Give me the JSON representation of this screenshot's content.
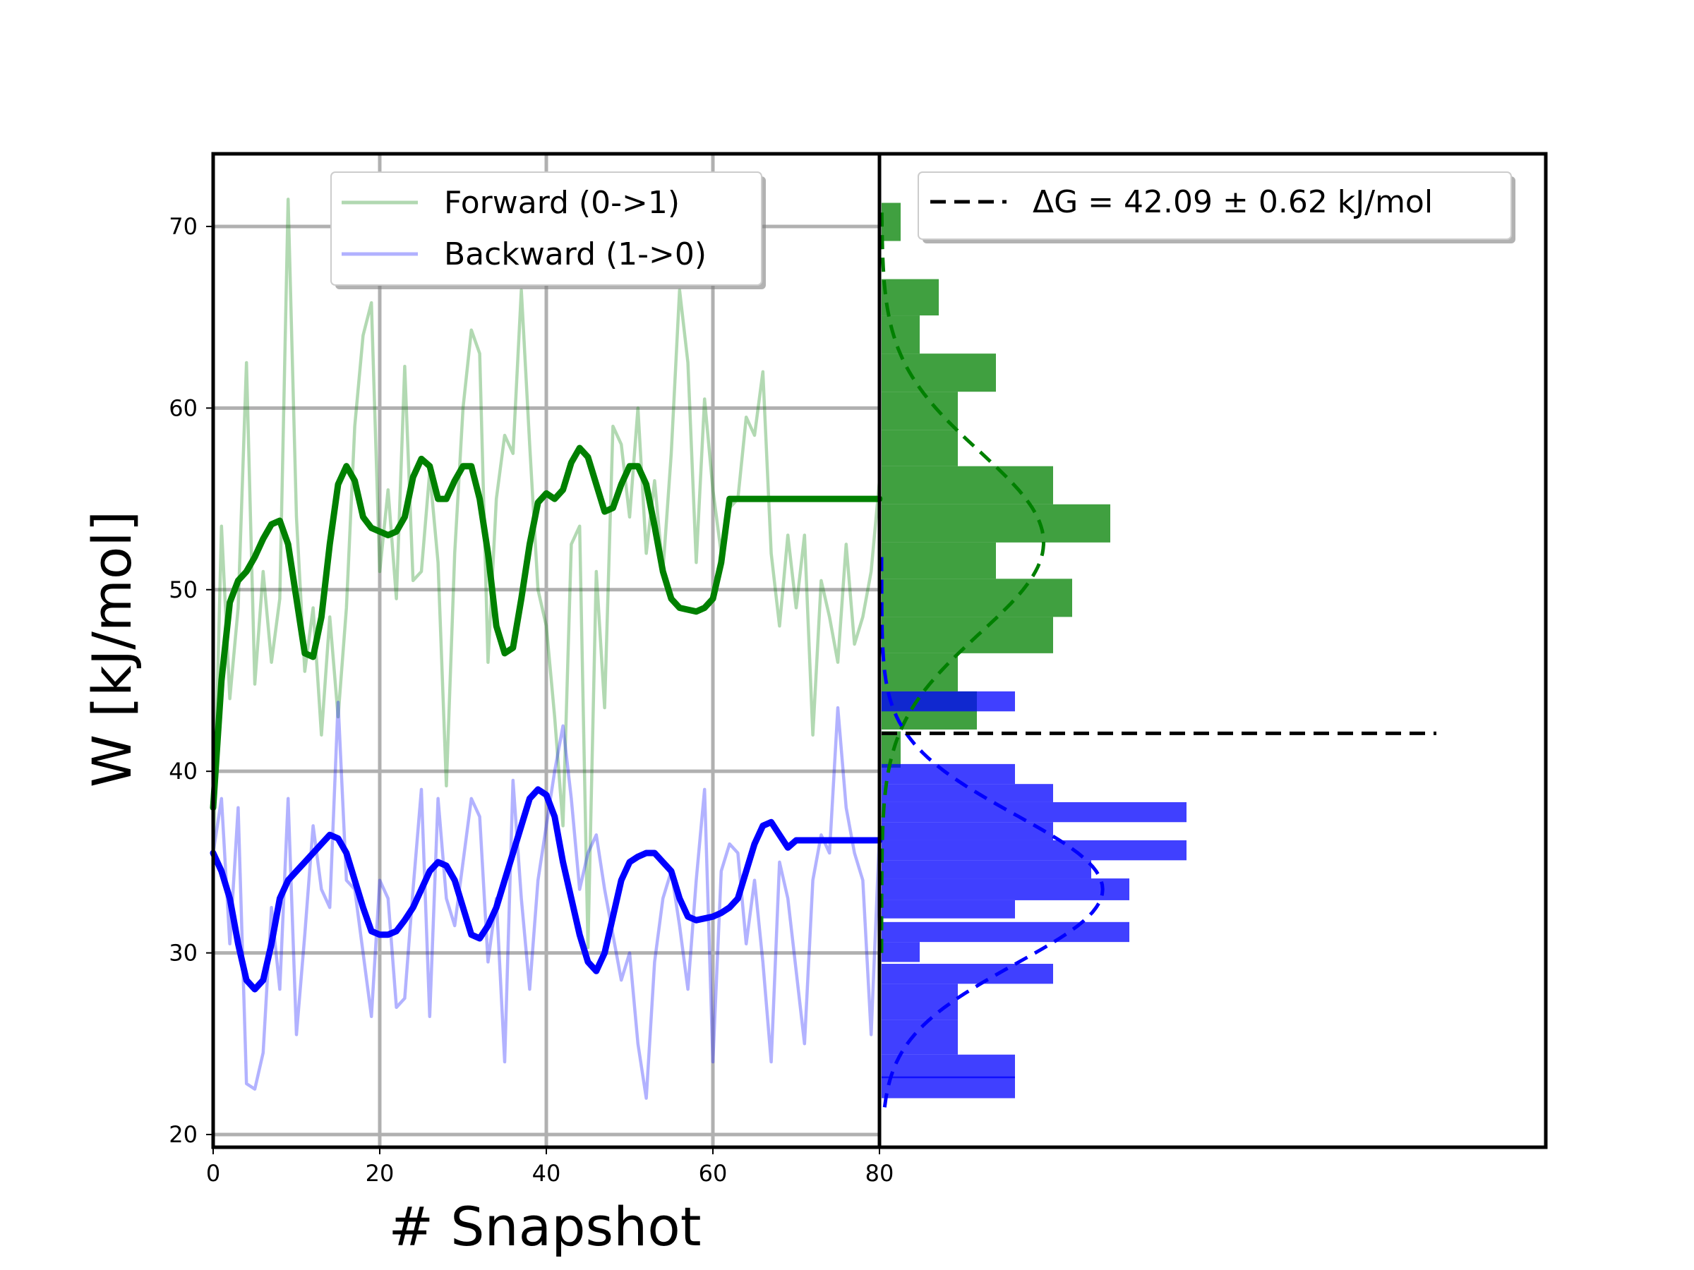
{
  "chart_data": [
    {
      "type": "line",
      "panel": "left",
      "xlabel": "# Snapshot",
      "ylabel": "W [kJ/mol]",
      "xlim": [
        0,
        80
      ],
      "ylim": [
        19.3,
        74.0
      ],
      "xticks": [
        "0",
        "20",
        "40",
        "60",
        "80"
      ],
      "yticks": [
        "20",
        "30",
        "40",
        "50",
        "60",
        "70"
      ],
      "grid": true,
      "legend": {
        "placement": "top-center",
        "entries": [
          "Forward (0->1)",
          "Backward (1->0)"
        ]
      },
      "series": [
        {
          "name": "Forward (0->1)",
          "color": "#008000",
          "style": "raw, translucent",
          "x": [
            0,
            1,
            2,
            3,
            4,
            5,
            6,
            7,
            8,
            9,
            10,
            11,
            12,
            13,
            14,
            15,
            16,
            17,
            18,
            19,
            20,
            21,
            22,
            23,
            24,
            25,
            26,
            27,
            28,
            29,
            30,
            31,
            32,
            33,
            34,
            35,
            36,
            37,
            38,
            39,
            40,
            41,
            42,
            43,
            44,
            45,
            46,
            47,
            48,
            49,
            50,
            51,
            52,
            53,
            54,
            55,
            56,
            57,
            58,
            59,
            60,
            61,
            62,
            63,
            64,
            65,
            66,
            67,
            68,
            69,
            70,
            71,
            72,
            73,
            74,
            75,
            76,
            77,
            78,
            79,
            80
          ],
          "values": [
            35.0,
            53.5,
            44.0,
            49.0,
            62.5,
            44.8,
            51.0,
            46.0,
            49.5,
            71.5,
            54.0,
            45.5,
            49.0,
            42.0,
            48.5,
            43.0,
            49.0,
            59.0,
            64.0,
            65.8,
            51.0,
            55.5,
            49.5,
            62.3,
            50.5,
            51.0,
            56.5,
            51.5,
            39.2,
            52.0,
            60.0,
            64.3,
            63.0,
            46.0,
            55.0,
            58.5,
            57.5,
            66.5,
            58.0,
            50.0,
            48.0,
            43.0,
            37.0,
            52.5,
            53.5,
            30.3,
            51.0,
            43.5,
            59.0,
            58.0,
            54.0,
            60.0,
            52.0,
            56.0,
            51.0,
            57.5,
            66.5,
            62.5,
            51.5,
            60.5,
            55.5,
            52.0,
            54.5,
            55.0,
            59.5,
            58.5,
            62.0,
            52.0,
            48.0,
            53.0,
            49.0,
            53.0,
            42.0,
            50.5,
            48.5,
            46.0,
            52.5,
            47.0,
            48.5,
            51.0,
            56.0
          ]
        },
        {
          "name": "Forward smoothed",
          "color": "#008000",
          "style": "smooth, thick",
          "x": [
            0,
            1,
            2,
            3,
            4,
            5,
            6,
            7,
            8,
            9,
            10,
            11,
            12,
            13,
            14,
            15,
            16,
            17,
            18,
            19,
            20,
            21,
            22,
            23,
            24,
            25,
            26,
            27,
            28,
            29,
            30,
            31,
            32,
            33,
            34,
            35,
            36,
            37,
            38,
            39,
            40,
            41,
            42,
            43,
            44,
            45,
            46,
            47,
            48,
            49,
            50,
            51,
            52,
            53,
            54,
            55,
            56,
            57,
            58,
            59,
            60,
            61,
            62,
            63,
            64,
            65,
            66,
            67,
            68,
            69,
            70,
            71,
            72,
            73,
            74,
            75,
            76,
            77,
            78,
            79,
            80
          ],
          "values": [
            38.0,
            45.0,
            49.3,
            50.5,
            51.0,
            51.8,
            52.8,
            53.6,
            53.8,
            52.5,
            49.5,
            46.5,
            46.3,
            48.5,
            52.5,
            55.8,
            56.8,
            56.0,
            54.0,
            53.4,
            53.2,
            53.0,
            53.2,
            54.0,
            56.2,
            57.2,
            56.8,
            55.0,
            55.0,
            56.0,
            56.8,
            56.8,
            55.0,
            52.0,
            48.0,
            46.5,
            46.8,
            49.5,
            52.5,
            54.8,
            55.3,
            55.0,
            55.5,
            57.0,
            57.8,
            57.3,
            55.8,
            54.3,
            54.5,
            55.8,
            56.8,
            56.8,
            55.8,
            53.5,
            51.0,
            49.5,
            49.0,
            48.9,
            48.8,
            49.0,
            49.5,
            51.5,
            55.0,
            55.0,
            55.0,
            55.0,
            55.0,
            55.0,
            55.0,
            55.0,
            55.0,
            55.0,
            55.0,
            55.0,
            55.0,
            55.0,
            55.0,
            55.0,
            55.0,
            55.0,
            55.0
          ]
        },
        {
          "name": "Backward (1->0)",
          "color": "#0000ff",
          "style": "raw, translucent",
          "x": [
            0,
            1,
            2,
            3,
            4,
            5,
            6,
            7,
            8,
            9,
            10,
            11,
            12,
            13,
            14,
            15,
            16,
            17,
            18,
            19,
            20,
            21,
            22,
            23,
            24,
            25,
            26,
            27,
            28,
            29,
            30,
            31,
            32,
            33,
            34,
            35,
            36,
            37,
            38,
            39,
            40,
            41,
            42,
            43,
            44,
            45,
            46,
            47,
            48,
            49,
            50,
            51,
            52,
            53,
            54,
            55,
            56,
            57,
            58,
            59,
            60,
            61,
            62,
            63,
            64,
            65,
            66,
            67,
            68,
            69,
            70,
            71,
            72,
            73,
            74,
            75,
            76,
            77,
            78,
            79,
            80
          ],
          "values": [
            35.5,
            38.5,
            30.5,
            38.0,
            22.8,
            22.5,
            24.5,
            32.5,
            28.0,
            38.5,
            25.5,
            31.0,
            37.0,
            33.5,
            32.5,
            43.8,
            34.0,
            33.5,
            30.0,
            26.5,
            34.0,
            33.0,
            27.0,
            27.5,
            33.5,
            39.0,
            26.5,
            38.5,
            33.0,
            31.5,
            35.0,
            38.5,
            37.5,
            29.5,
            33.0,
            24.0,
            39.5,
            33.0,
            28.0,
            34.0,
            37.0,
            40.0,
            42.5,
            38.5,
            33.5,
            35.5,
            36.5,
            33.5,
            31.0,
            28.5,
            30.0,
            25.0,
            22.0,
            29.5,
            33.0,
            34.5,
            31.5,
            28.0,
            34.0,
            39.0,
            24.0,
            34.5,
            36.0,
            35.5,
            30.5,
            34.0,
            29.5,
            24.0,
            35.0,
            33.0,
            29.0,
            25.0,
            34.0,
            36.5,
            35.5,
            43.5,
            38.0,
            35.5,
            34.0,
            25.5,
            36.5
          ]
        },
        {
          "name": "Backward smoothed",
          "color": "#0000ff",
          "style": "smooth, thick",
          "x": [
            0,
            1,
            2,
            3,
            4,
            5,
            6,
            7,
            8,
            9,
            10,
            11,
            12,
            13,
            14,
            15,
            16,
            17,
            18,
            19,
            20,
            21,
            22,
            23,
            24,
            25,
            26,
            27,
            28,
            29,
            30,
            31,
            32,
            33,
            34,
            35,
            36,
            37,
            38,
            39,
            40,
            41,
            42,
            43,
            44,
            45,
            46,
            47,
            48,
            49,
            50,
            51,
            52,
            53,
            54,
            55,
            56,
            57,
            58,
            59,
            60,
            61,
            62,
            63,
            64,
            65,
            66,
            67,
            68,
            69,
            70,
            71,
            72,
            73,
            74,
            75,
            76,
            77,
            78,
            79,
            80
          ],
          "values": [
            35.5,
            34.5,
            33.0,
            30.5,
            28.5,
            28.0,
            28.5,
            30.5,
            33.0,
            34.0,
            34.5,
            35.0,
            35.5,
            36.0,
            36.5,
            36.3,
            35.5,
            34.0,
            32.5,
            31.2,
            31.0,
            31.0,
            31.2,
            31.8,
            32.5,
            33.5,
            34.5,
            35.0,
            34.8,
            34.0,
            32.5,
            31.0,
            30.8,
            31.5,
            32.5,
            34.0,
            35.5,
            37.0,
            38.5,
            39.0,
            38.7,
            37.5,
            35.0,
            33.0,
            31.0,
            29.5,
            29.0,
            30.0,
            32.0,
            34.0,
            35.0,
            35.3,
            35.5,
            35.5,
            35.0,
            34.5,
            33.0,
            32.0,
            31.8,
            31.9,
            32.0,
            32.2,
            32.5,
            33.0,
            34.5,
            36.0,
            37.0,
            37.2,
            36.5,
            35.8,
            36.2,
            36.2,
            36.2,
            36.2,
            36.2,
            36.2,
            36.2,
            36.2,
            36.2,
            36.2,
            36.2
          ]
        }
      ]
    },
    {
      "type": "bar",
      "orientation": "horizontal histogram",
      "panel": "right",
      "ylim": [
        19.3,
        74.0
      ],
      "legend": {
        "placement": "top-right",
        "entries": [
          "ΔG = 42.09 ± 0.62 kJ/mol"
        ]
      },
      "delta_g": {
        "value": 42.09,
        "error": 0.62,
        "label": "ΔG = 42.09 ± 0.62 kJ/mol",
        "color": "#000000"
      },
      "series": [
        {
          "name": "Forward histogram",
          "color": "#008000",
          "bins": [
            {
              "y0": 40.2,
              "y1": 42.2,
              "count": 1
            },
            {
              "y0": 42.3,
              "y1": 44.4,
              "count": 5
            },
            {
              "y0": 44.4,
              "y1": 46.5,
              "count": 4
            },
            {
              "y0": 46.5,
              "y1": 48.5,
              "count": 9
            },
            {
              "y0": 48.5,
              "y1": 50.6,
              "count": 10
            },
            {
              "y0": 50.6,
              "y1": 52.6,
              "count": 6
            },
            {
              "y0": 52.6,
              "y1": 54.7,
              "count": 12
            },
            {
              "y0": 54.7,
              "y1": 56.8,
              "count": 9
            },
            {
              "y0": 56.8,
              "y1": 58.8,
              "count": 4
            },
            {
              "y0": 58.8,
              "y1": 60.9,
              "count": 4
            },
            {
              "y0": 60.9,
              "y1": 63.0,
              "count": 6
            },
            {
              "y0": 63.0,
              "y1": 65.1,
              "count": 2
            },
            {
              "y0": 65.1,
              "y1": 67.1,
              "count": 3
            },
            {
              "y0": 69.2,
              "y1": 71.3,
              "count": 1
            }
          ]
        },
        {
          "name": "Backward histogram",
          "color": "#0000ff",
          "bins": [
            {
              "y0": 22.0,
              "y1": 23.2,
              "count": 7
            },
            {
              "y0": 23.1,
              "y1": 24.4,
              "count": 7
            },
            {
              "y0": 24.4,
              "y1": 26.3,
              "count": 4
            },
            {
              "y0": 26.3,
              "y1": 28.3,
              "count": 4
            },
            {
              "y0": 28.3,
              "y1": 29.4,
              "count": 9
            },
            {
              "y0": 29.5,
              "y1": 30.6,
              "count": 2
            },
            {
              "y0": 30.6,
              "y1": 31.7,
              "count": 13
            },
            {
              "y0": 31.9,
              "y1": 32.9,
              "count": 7
            },
            {
              "y0": 32.9,
              "y1": 34.1,
              "count": 13
            },
            {
              "y0": 34.1,
              "y1": 35.1,
              "count": 11
            },
            {
              "y0": 35.1,
              "y1": 36.2,
              "count": 16
            },
            {
              "y0": 36.2,
              "y1": 37.2,
              "count": 9
            },
            {
              "y0": 37.2,
              "y1": 38.3,
              "count": 16
            },
            {
              "y0": 38.3,
              "y1": 39.3,
              "count": 9
            },
            {
              "y0": 39.3,
              "y1": 40.4,
              "count": 7
            },
            {
              "y0": 43.3,
              "y1": 44.4,
              "count": 7
            }
          ]
        }
      ],
      "fits": [
        {
          "name": "Forward gaussian fit",
          "color": "#008000",
          "style": "dashed",
          "mean": 52.6,
          "std": 5.0,
          "peak": 8.5,
          "ymin": 30.0,
          "ymax": 71.0
        },
        {
          "name": "Backward gaussian fit",
          "color": "#0000ff",
          "style": "dashed",
          "mean": 33.5,
          "std": 4.1,
          "peak": 11.6,
          "ymin": 21.5,
          "ymax": 52.0
        }
      ]
    }
  ]
}
